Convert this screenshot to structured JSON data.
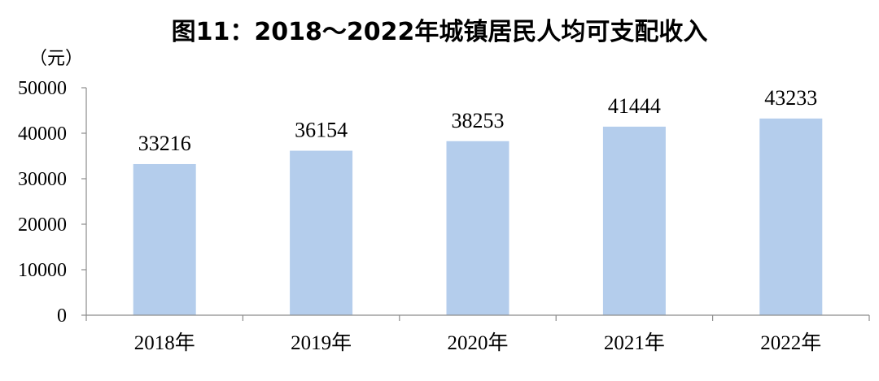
{
  "title": "图11：2018～2022年城镇居民人均可支配收入",
  "unit": "（元）",
  "colors": {
    "bar": "#b4cdec",
    "axis": "#8c8c8c"
  },
  "chart_data": {
    "type": "bar",
    "title": "图11：2018～2022年城镇居民人均可支配收入",
    "ylabel": "（元）",
    "xlabel": "",
    "categories": [
      "2018年",
      "2019年",
      "2020年",
      "2021年",
      "2022年"
    ],
    "values": [
      33216,
      36154,
      38253,
      41444,
      43233
    ],
    "ylim": [
      0,
      50000
    ],
    "yticks": [
      0,
      10000,
      20000,
      30000,
      40000,
      50000
    ],
    "grid": false,
    "legend": "none"
  }
}
